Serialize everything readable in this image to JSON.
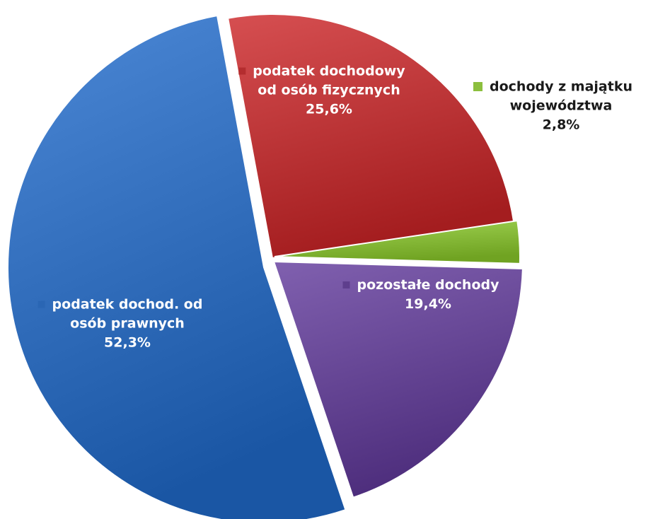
{
  "chart_data": {
    "type": "pie",
    "start_angle_deg": -100.5,
    "slices": [
      {
        "label_lines": [
          "podatek dochodowy",
          "od osób fizycznych"
        ],
        "value_label": "25,6%",
        "value": 25.6,
        "color": "#c0393b",
        "text_color": "#ffffff"
      },
      {
        "label_lines": [
          "dochody z majątku",
          "województwa"
        ],
        "value_label": "2,8%",
        "value": 2.8,
        "color": "#8cbf3e",
        "text_color": "#1a1a1a"
      },
      {
        "label_lines": [
          "pozostałe dochody"
        ],
        "value_label": "19,4%",
        "value": 19.4,
        "color": "#6a4a99",
        "text_color": "#ffffff"
      },
      {
        "label_lines": [
          "podatek dochod. od",
          "osób prawnych"
        ],
        "value_label": "52,3%",
        "value": 52.3,
        "color": "#3672c0",
        "text_color": "#ffffff"
      }
    ]
  }
}
